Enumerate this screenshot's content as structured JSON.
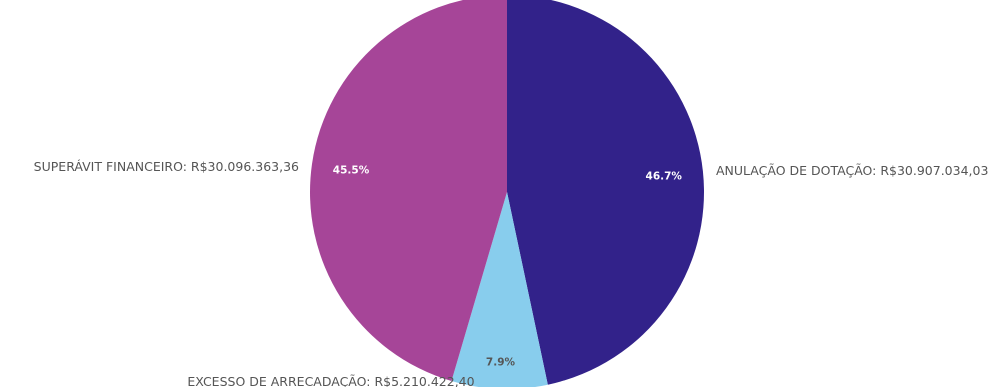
{
  "chart_data": {
    "type": "pie",
    "title": "",
    "slices": [
      {
        "name": "ANULAÇÃO DE DOTAÇÃO",
        "value": 30907034.03,
        "label": "ANULAÇÃO DE DOTAÇÃO: R$30.907.034,03",
        "percent_label": "46.7%",
        "color": "#32228a",
        "percent_color": "#ffffff"
      },
      {
        "name": "EXCESSO DE ARRECADAÇÃO",
        "value": 5210422.4,
        "label": "EXCESSO DE ARRECADAÇÃO: R$5.210.422,40",
        "percent_label": "7.9%",
        "color": "#88cded",
        "percent_color": "#555555"
      },
      {
        "name": "SUPERÁVIT FINANCEIRO",
        "value": 30096363.36,
        "label": "SUPERÁVIT FINANCEIRO: R$30.096.363,36",
        "percent_label": "45.5%",
        "color": "#a64598",
        "percent_color": "#ffffff"
      }
    ],
    "start_angle": "12 o'clock",
    "direction": "clockwise",
    "legend": "none"
  }
}
